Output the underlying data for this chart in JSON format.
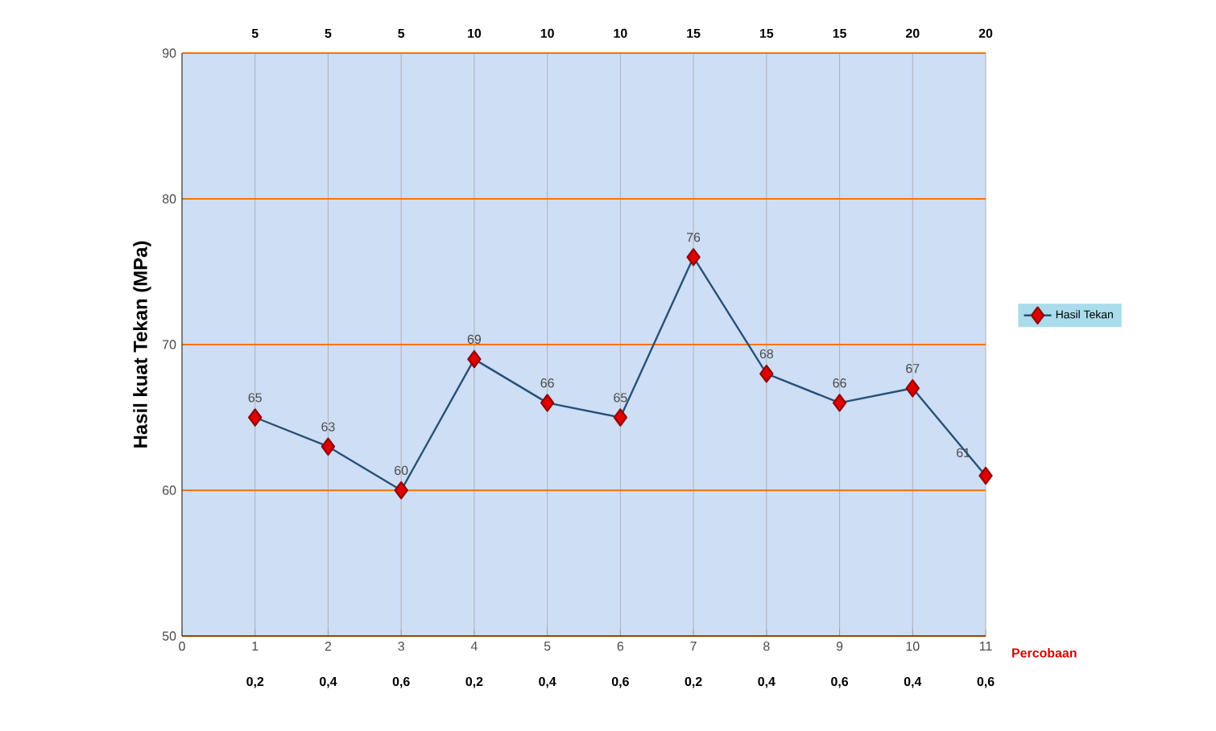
{
  "chart_data": {
    "type": "line",
    "ylabel": "Hasil kuat Tekan (MPa)",
    "xlabel": "Percobaan",
    "x": [
      1,
      2,
      3,
      4,
      5,
      6,
      7,
      8,
      9,
      10,
      11
    ],
    "series": [
      {
        "name": "Hasil Tekan",
        "color": "#e00000",
        "values": [
          65,
          63,
          60,
          69,
          66,
          65,
          76,
          68,
          66,
          67,
          61
        ]
      }
    ],
    "data_labels": true,
    "marker": "diamond",
    "line_style": "solid",
    "grid": true,
    "legend": "right",
    "xlim": [
      0,
      11
    ],
    "xticks": [
      0,
      1,
      2,
      3,
      4,
      5,
      6,
      7,
      8,
      9,
      10,
      11
    ],
    "ylim": [
      50,
      90
    ],
    "yticks": [
      50,
      60,
      70,
      80,
      90
    ],
    "annotations": [
      "5",
      "5",
      "5",
      "10",
      "10",
      "10",
      "15",
      "15",
      "15",
      "20",
      "20",
      "0,2",
      "0,4",
      "0,6",
      "0,2",
      "0,4",
      "0,6",
      "0,2",
      "0,4",
      "0,6",
      "0,4",
      "0,6"
    ]
  }
}
